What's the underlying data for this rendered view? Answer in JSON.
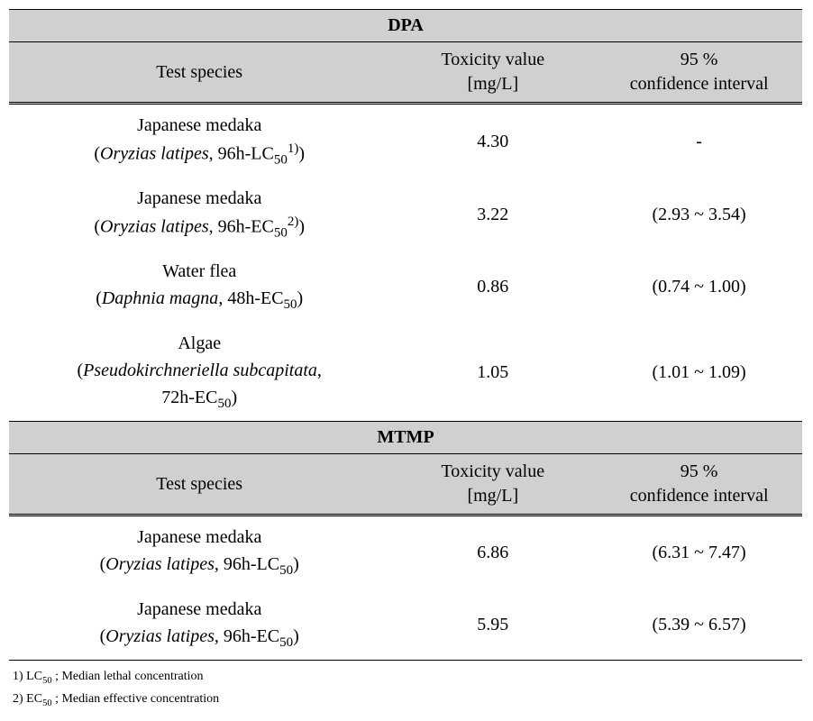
{
  "columns": {
    "species": "Test species",
    "toxicity": "Toxicity value\n[mg/L]",
    "ci": "95 %\nconfidence interval"
  },
  "sections": [
    {
      "title": "DPA",
      "rows": [
        {
          "common": "Japanese medaka",
          "scientific": "Oryzias latipes",
          "endpoint_prefix": "96h-LC",
          "endpoint_sub": "50",
          "endpoint_sup": "1)",
          "toxicity": "4.30",
          "ci": "-"
        },
        {
          "common": "Japanese medaka",
          "scientific": "Oryzias latipes",
          "endpoint_prefix": "96h-EC",
          "endpoint_sub": "50",
          "endpoint_sup": "2)",
          "toxicity": "3.22",
          "ci": "(2.93 ~ 3.54)"
        },
        {
          "common": "Water flea",
          "scientific": "Daphnia magna",
          "endpoint_prefix": "48h-EC",
          "endpoint_sub": "50",
          "endpoint_sup": "",
          "toxicity": "0.86",
          "ci": "(0.74 ~ 1.00)"
        },
        {
          "common": "Algae",
          "scientific": "Pseudokirchneriella subcapitata",
          "endpoint_prefix": "72h-EC",
          "endpoint_sub": "50",
          "endpoint_sup": "",
          "toxicity": "1.05",
          "ci": "(1.01 ~ 1.09)",
          "wrap_detail": true
        }
      ]
    },
    {
      "title": "MTMP",
      "rows": [
        {
          "common": "Japanese medaka",
          "scientific": "Oryzias latipes",
          "endpoint_prefix": "96h-LC",
          "endpoint_sub": "50",
          "endpoint_sup": "",
          "toxicity": "6.86",
          "ci": "(6.31 ~ 7.47)"
        },
        {
          "common": "Japanese medaka",
          "scientific": "Oryzias latipes",
          "endpoint_prefix": "96h-EC",
          "endpoint_sub": "50",
          "endpoint_sup": "",
          "toxicity": "5.95",
          "ci": "(5.39 ~ 6.57)"
        }
      ]
    }
  ],
  "footnotes": [
    {
      "label": "1) LC",
      "sub": "50",
      "tail": " ; Median lethal concentration"
    },
    {
      "label": "2) EC",
      "sub": "50",
      "tail": " ; Median effective concentration"
    }
  ]
}
